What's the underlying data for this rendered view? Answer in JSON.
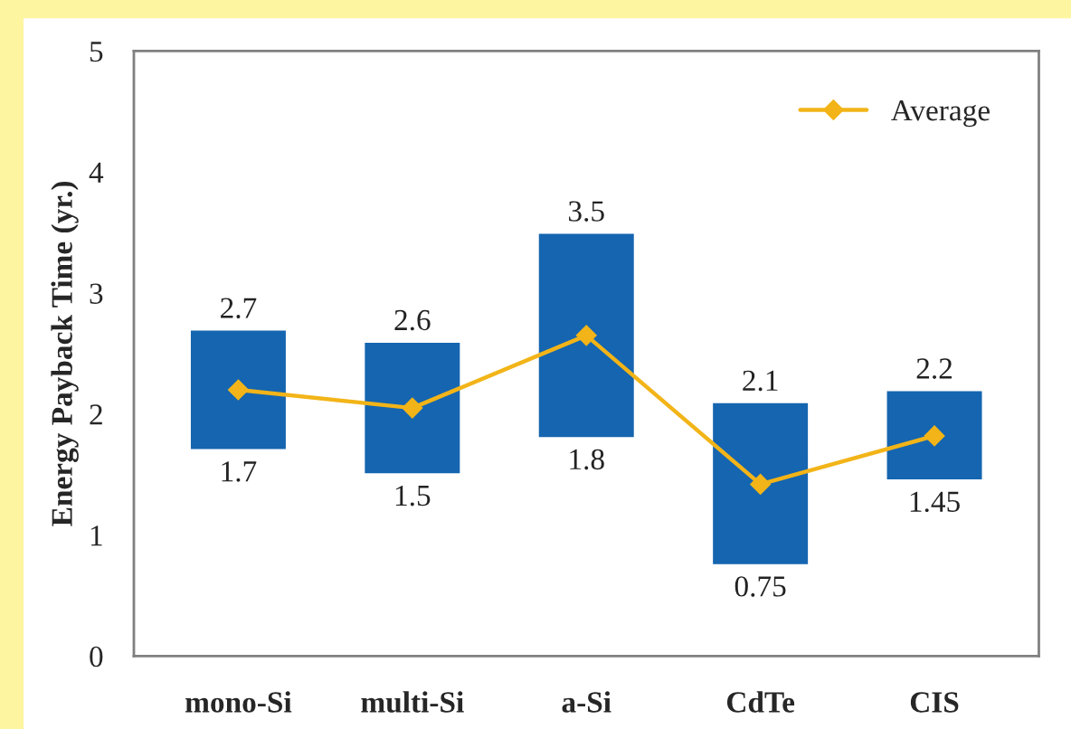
{
  "chart_data": {
    "type": "bar",
    "ylabel": "Energy Payback Time (yr.)",
    "categories": [
      "mono-Si",
      "multi-Si",
      "a-Si",
      "CdTe",
      "CIS"
    ],
    "series": [
      {
        "color": "#1565b0",
        "base": [
          1.7,
          1.5,
          1.8,
          0.75,
          1.45
        ],
        "values": [
          1.0,
          1.1,
          1.7,
          1.35,
          0.75
        ]
      },
      {
        "type": "line",
        "name": "Average",
        "color": "#f2b418",
        "values": [
          2.2,
          2.05,
          2.65,
          1.42,
          1.82
        ],
        "marker": "diamond"
      }
    ],
    "annotations": [
      {
        "text": "2.7",
        "x": "mono-Si",
        "y": 2.7
      },
      {
        "text": "1.7",
        "x": "mono-Si",
        "y": 1.7
      },
      {
        "text": "2.6",
        "x": "multi-Si",
        "y": 2.6
      },
      {
        "text": "1.5",
        "x": "multi-Si",
        "y": 1.5
      },
      {
        "text": "3.5",
        "x": "a-Si",
        "y": 3.5
      },
      {
        "text": "1.8",
        "x": "a-Si",
        "y": 1.8
      },
      {
        "text": "2.1",
        "x": "CdTe",
        "y": 2.1
      },
      {
        "text": "0.75",
        "x": "CdTe",
        "y": 0.75
      },
      {
        "text": "2.2",
        "x": "CIS",
        "y": 2.2
      },
      {
        "text": "1.45",
        "x": "CIS",
        "y": 1.45
      }
    ],
    "ylim": [
      0,
      5
    ],
    "yticks": [
      0,
      1,
      2,
      3,
      4,
      5
    ],
    "grid": false,
    "legend": "top right"
  }
}
